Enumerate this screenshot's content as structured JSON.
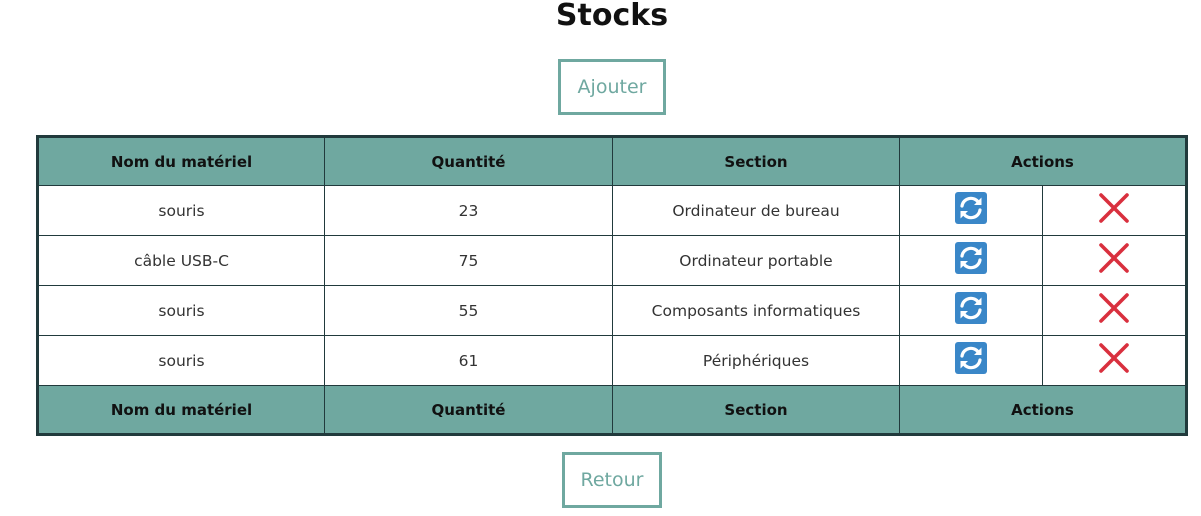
{
  "page": {
    "title": "Stocks"
  },
  "buttons": {
    "add_label": "Ajouter",
    "back_label": "Retour"
  },
  "table": {
    "headers": [
      "Nom du matériel",
      "Quantité",
      "Section",
      "Actions"
    ],
    "footers": [
      "Nom du matériel",
      "Quantité",
      "Section",
      "Actions"
    ],
    "rows": [
      {
        "name": "souris",
        "quantity": "23",
        "section": "Ordinateur de bureau"
      },
      {
        "name": "câble USB-C",
        "quantity": "75",
        "section": "Ordinateur portable"
      },
      {
        "name": "souris",
        "quantity": "55",
        "section": "Composants informatiques"
      },
      {
        "name": "souris",
        "quantity": "61",
        "section": "Périphériques"
      }
    ],
    "row_actions": {
      "edit_icon": "refresh-icon",
      "delete_icon": "close-icon"
    }
  },
  "colors": {
    "accent": "#6fa8a0",
    "table_border": "#213a3c",
    "refresh_icon_bg": "#3a87c8",
    "delete_icon": "#d9303e"
  }
}
